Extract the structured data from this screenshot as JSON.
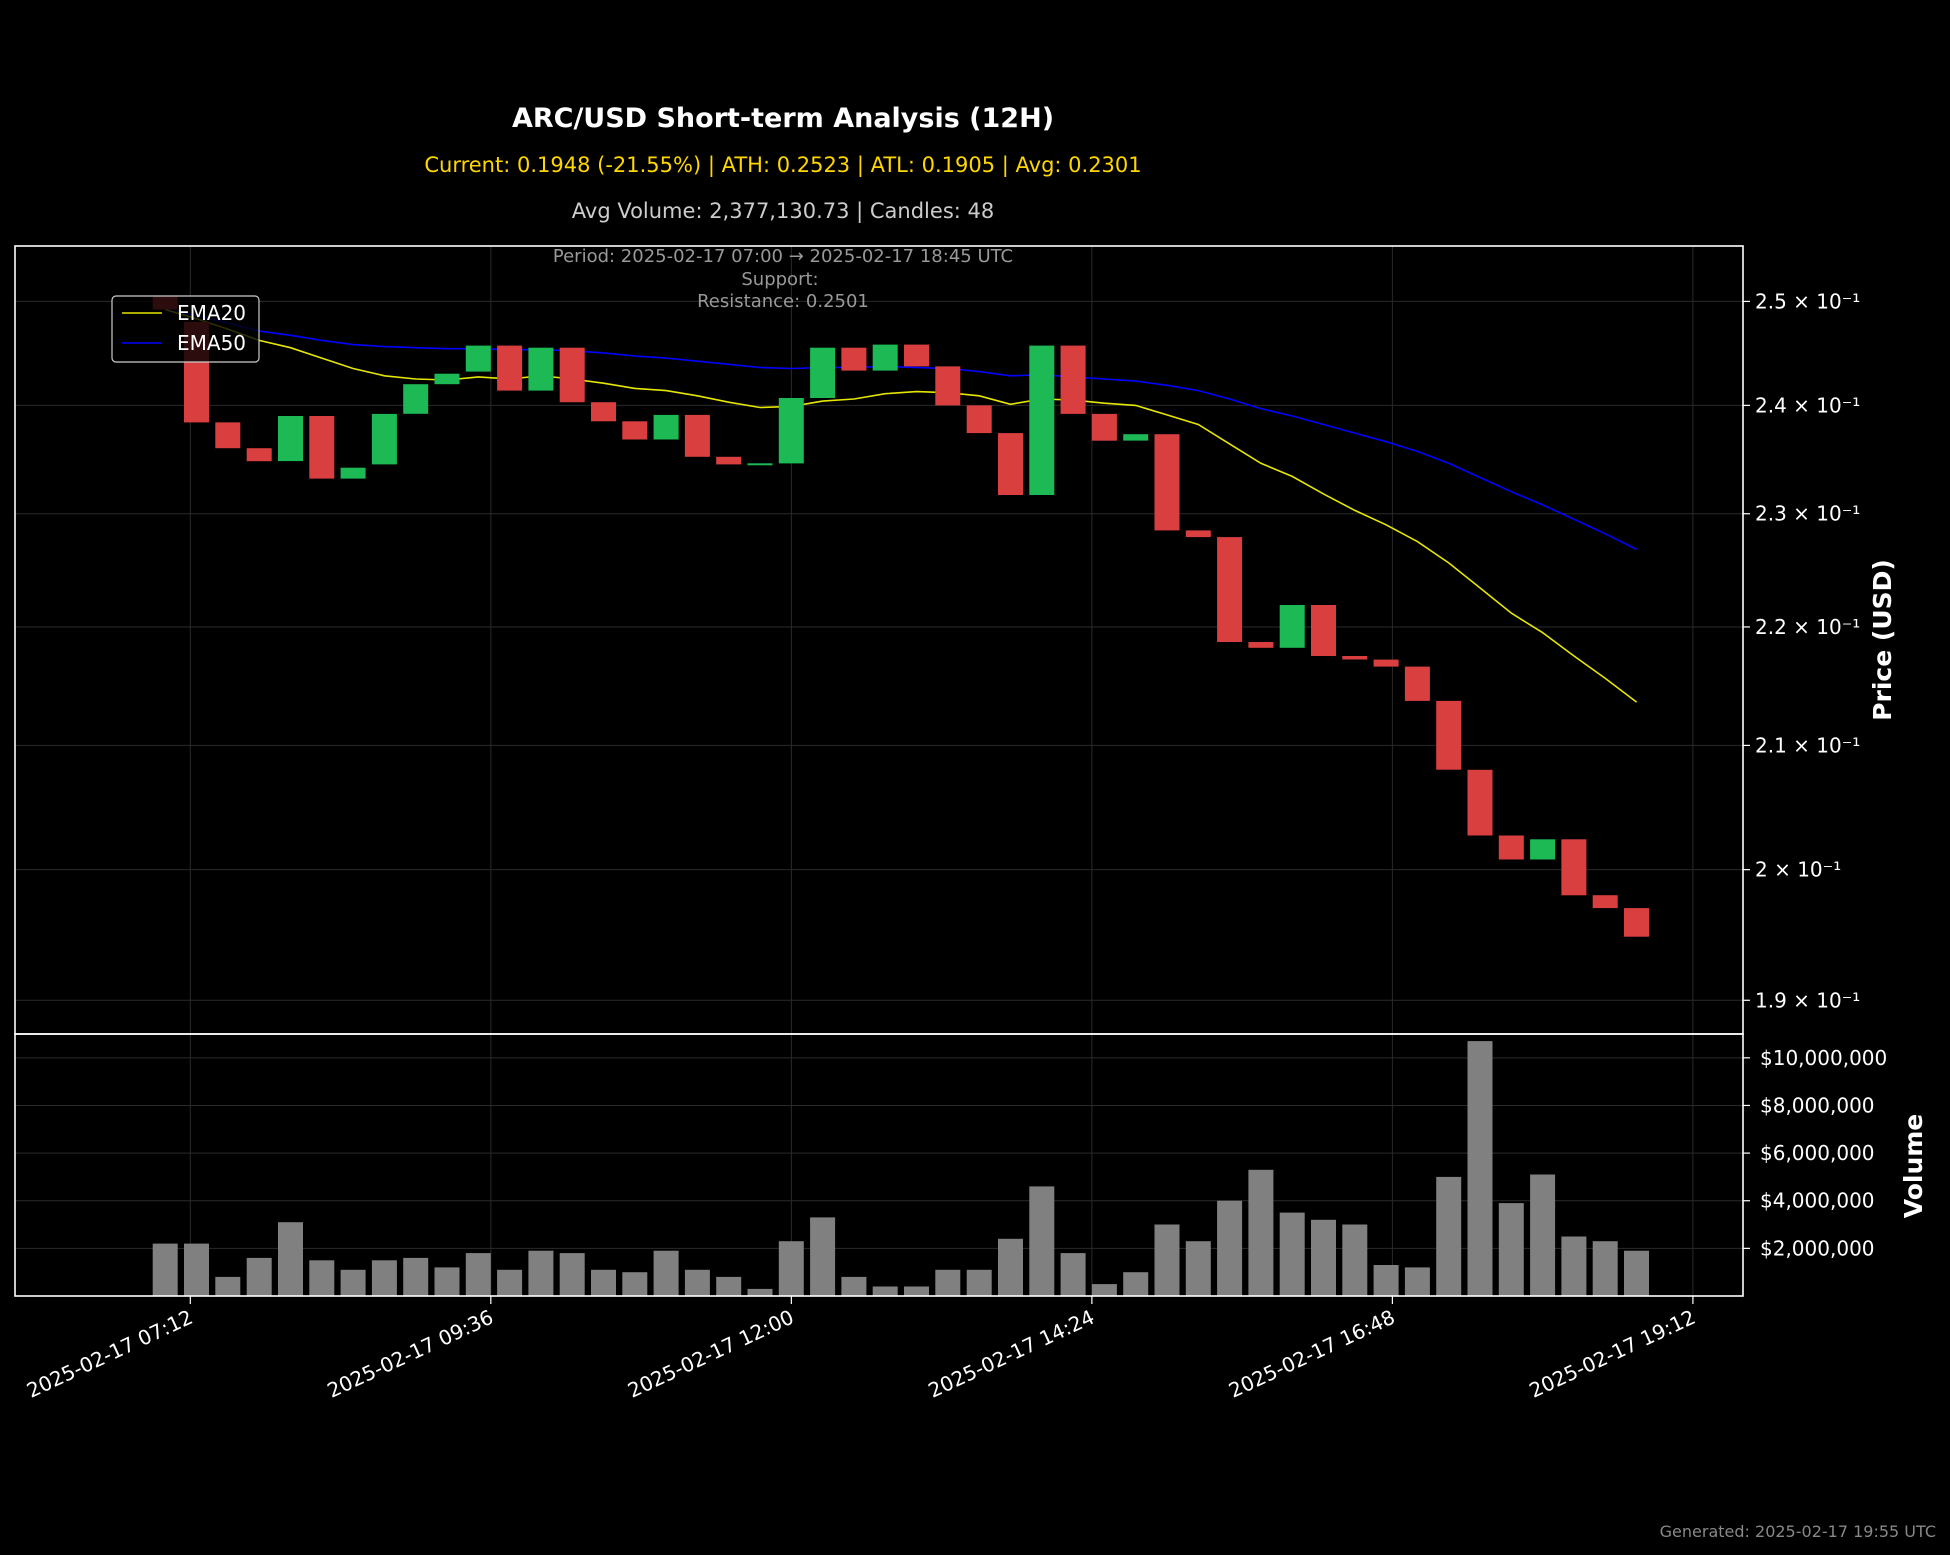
{
  "chart_data": {
    "type": "candlestick",
    "title": "ARC/USD Short-term Analysis (12H)",
    "subtitle": "Current: 0.1948 (-21.55%) | ATH: 0.2523 | ATL: 0.1905 | Avg: 0.2301",
    "subtitle2": "Avg Volume: 2,377,130.73 | Candles: 48",
    "period_note": "Period: 2025-02-17 07:00 → 2025-02-17 18:45 UTC",
    "support_note": "Support:",
    "resistance_note": "Resistance: 0.2501",
    "ylabel": "Price (USD)",
    "volume_label": "Volume",
    "footer": "Generated: 2025-02-17 19:55 UTC",
    "yscale": "log",
    "ylim": [
      0.1875,
      0.2555
    ],
    "y_ticks": [
      {
        "value": 0.25,
        "label": "2.5 × 10⁻¹"
      },
      {
        "value": 0.24,
        "label": "2.4 × 10⁻¹"
      },
      {
        "value": 0.23,
        "label": "2.3 × 10⁻¹"
      },
      {
        "value": 0.22,
        "label": "2.2 × 10⁻¹"
      },
      {
        "value": 0.21,
        "label": "2.1 × 10⁻¹"
      },
      {
        "value": 0.2,
        "label": "2 × 10⁻¹"
      },
      {
        "value": 0.19,
        "label": "1.9 × 10⁻¹"
      }
    ],
    "volume_ylim": [
      0,
      11000000
    ],
    "volume_ticks": [
      {
        "value": 2000000,
        "label": "$2,000,000"
      },
      {
        "value": 4000000,
        "label": "$4,000,000"
      },
      {
        "value": 6000000,
        "label": "$6,000,000"
      },
      {
        "value": 8000000,
        "label": "$8,000,000"
      },
      {
        "value": 10000000,
        "label": "$10,000,000"
      }
    ],
    "x_range_minutes": [
      -72,
      756
    ],
    "x_ticks": [
      {
        "minute": 12,
        "label": "2025-02-17 07:12"
      },
      {
        "minute": 156,
        "label": "2025-02-17 09:36"
      },
      {
        "minute": 300,
        "label": "2025-02-17 12:00"
      },
      {
        "minute": 444,
        "label": "2025-02-17 14:24"
      },
      {
        "minute": 588,
        "label": "2025-02-17 16:48"
      },
      {
        "minute": 732,
        "label": "2025-02-17 19:12"
      }
    ],
    "candle_interval_minutes": 15,
    "grid": true,
    "legend": {
      "position": "top-left",
      "entries": [
        "EMA20",
        "EMA50"
      ]
    },
    "colors": {
      "up": "#1db954",
      "down": "#d93f3f",
      "ema20": "#e6e600",
      "ema50": "#0000ff",
      "volume": "#808080"
    },
    "candles": [
      {
        "open": 0.2505,
        "close": 0.2492,
        "volume": 2200000
      },
      {
        "open": 0.248,
        "close": 0.2384,
        "volume": 2200000
      },
      {
        "open": 0.2384,
        "close": 0.236,
        "volume": 800000
      },
      {
        "open": 0.236,
        "close": 0.2348,
        "volume": 1600000
      },
      {
        "open": 0.2348,
        "close": 0.239,
        "volume": 3100000
      },
      {
        "open": 0.239,
        "close": 0.2332,
        "volume": 1500000
      },
      {
        "open": 0.2332,
        "close": 0.2342,
        "volume": 1100000
      },
      {
        "open": 0.2345,
        "close": 0.2392,
        "volume": 1500000
      },
      {
        "open": 0.2392,
        "close": 0.242,
        "volume": 1600000
      },
      {
        "open": 0.242,
        "close": 0.243,
        "volume": 1200000
      },
      {
        "open": 0.2432,
        "close": 0.2457,
        "volume": 1800000
      },
      {
        "open": 0.2457,
        "close": 0.2414,
        "volume": 1100000
      },
      {
        "open": 0.2414,
        "close": 0.2455,
        "volume": 1900000
      },
      {
        "open": 0.2455,
        "close": 0.2403,
        "volume": 1800000
      },
      {
        "open": 0.2403,
        "close": 0.2385,
        "volume": 1100000
      },
      {
        "open": 0.2385,
        "close": 0.2368,
        "volume": 1000000
      },
      {
        "open": 0.2368,
        "close": 0.2391,
        "volume": 1900000
      },
      {
        "open": 0.2391,
        "close": 0.2352,
        "volume": 1100000
      },
      {
        "open": 0.2352,
        "close": 0.2345,
        "volume": 800000
      },
      {
        "open": 0.2345,
        "close": 0.2346,
        "volume": 300000
      },
      {
        "open": 0.2346,
        "close": 0.2407,
        "volume": 2300000
      },
      {
        "open": 0.2407,
        "close": 0.2455,
        "volume": 3300000
      },
      {
        "open": 0.2455,
        "close": 0.2433,
        "volume": 800000
      },
      {
        "open": 0.2433,
        "close": 0.2458,
        "volume": 400000
      },
      {
        "open": 0.2458,
        "close": 0.2437,
        "volume": 400000
      },
      {
        "open": 0.2437,
        "close": 0.24,
        "volume": 1100000
      },
      {
        "open": 0.24,
        "close": 0.2374,
        "volume": 1100000
      },
      {
        "open": 0.2374,
        "close": 0.2317,
        "volume": 2400000
      },
      {
        "open": 0.2317,
        "close": 0.2457,
        "volume": 4600000
      },
      {
        "open": 0.2457,
        "close": 0.2392,
        "volume": 1800000
      },
      {
        "open": 0.2392,
        "close": 0.2367,
        "volume": 500000
      },
      {
        "open": 0.2367,
        "close": 0.2373,
        "volume": 1000000
      },
      {
        "open": 0.2373,
        "close": 0.2285,
        "volume": 3000000
      },
      {
        "open": 0.2285,
        "close": 0.2279,
        "volume": 2300000
      },
      {
        "open": 0.2279,
        "close": 0.2187,
        "volume": 4000000
      },
      {
        "open": 0.2187,
        "close": 0.2182,
        "volume": 5300000
      },
      {
        "open": 0.2182,
        "close": 0.2219,
        "volume": 3500000
      },
      {
        "open": 0.2219,
        "close": 0.2175,
        "volume": 3200000
      },
      {
        "open": 0.2175,
        "close": 0.2172,
        "volume": 3000000
      },
      {
        "open": 0.2172,
        "close": 0.2166,
        "volume": 1300000
      },
      {
        "open": 0.2166,
        "close": 0.2137,
        "volume": 1200000
      },
      {
        "open": 0.2137,
        "close": 0.208,
        "volume": 5000000
      },
      {
        "open": 0.208,
        "close": 0.2027,
        "volume": 10700000
      },
      {
        "open": 0.2027,
        "close": 0.2008,
        "volume": 3900000
      },
      {
        "open": 0.2008,
        "close": 0.2024,
        "volume": 5100000
      },
      {
        "open": 0.2024,
        "close": 0.198,
        "volume": 2500000
      },
      {
        "open": 0.198,
        "close": 0.197,
        "volume": 2300000
      },
      {
        "open": 0.197,
        "close": 0.1948,
        "volume": 1900000
      }
    ],
    "ema20": [
      0.2492,
      0.2483,
      0.2473,
      0.2462,
      0.2455,
      0.2445,
      0.2435,
      0.2428,
      0.2425,
      0.2424,
      0.2427,
      0.2425,
      0.2428,
      0.2425,
      0.2421,
      0.2416,
      0.2414,
      0.2409,
      0.2403,
      0.2398,
      0.2399,
      0.2404,
      0.2406,
      0.2411,
      0.2413,
      0.2412,
      0.2409,
      0.2401,
      0.2406,
      0.2405,
      0.2402,
      0.24,
      0.2391,
      0.2382,
      0.2364,
      0.2346,
      0.2334,
      0.2318,
      0.2303,
      0.229,
      0.2275,
      0.2256,
      0.2234,
      0.2212,
      0.2195,
      0.2175,
      0.2156,
      0.2136
    ],
    "ema50": [
      0.2492,
      0.2486,
      0.2479,
      0.2471,
      0.2467,
      0.2462,
      0.2458,
      0.2456,
      0.2455,
      0.2454,
      0.2454,
      0.2453,
      0.2453,
      0.2452,
      0.245,
      0.2447,
      0.2445,
      0.2442,
      0.2439,
      0.2436,
      0.2435,
      0.2436,
      0.2436,
      0.2437,
      0.2436,
      0.2435,
      0.2432,
      0.2428,
      0.2429,
      0.2427,
      0.2425,
      0.2423,
      0.2419,
      0.2414,
      0.2406,
      0.2397,
      0.239,
      0.2382,
      0.2374,
      0.2366,
      0.2357,
      0.2346,
      0.2333,
      0.232,
      0.2308,
      0.2295,
      0.2282,
      0.2268
    ]
  }
}
